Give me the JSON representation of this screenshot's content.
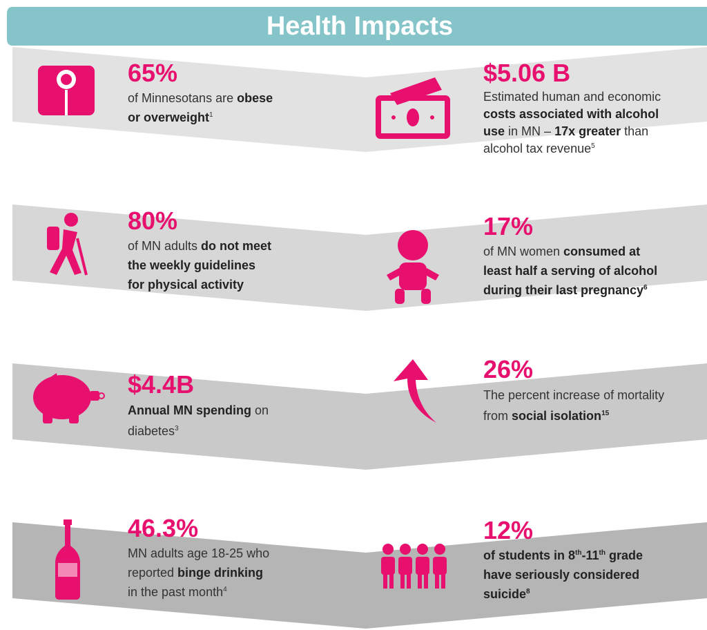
{
  "title": "Health Impacts",
  "items": [
    {
      "stat": "65%",
      "lines": [
        [
          "of Minnesotans are ",
          "obese"
        ],
        [
          "or overweight",
          "1"
        ]
      ]
    },
    {
      "stat": "$5.06 B",
      "lines": [
        [
          "Estimated human and economic"
        ],
        [
          "costs associated with alcohol"
        ],
        [
          "use",
          " in MN – ",
          "17x greater",
          " than"
        ],
        [
          "alcohol tax revenue",
          "5"
        ]
      ]
    },
    {
      "stat": "80%",
      "lines": [
        [
          "of MN adults ",
          "do not meet"
        ],
        [
          "the weekly guidelines"
        ],
        [
          "for physical activity"
        ]
      ]
    },
    {
      "stat": "17%",
      "lines": [
        [
          "of MN women ",
          "consumed at"
        ],
        [
          "least half a serving of alcohol"
        ],
        [
          "during their last pregnancy",
          "6"
        ]
      ]
    },
    {
      "stat": "$4.4B",
      "lines": [
        [
          "Annual MN spending",
          " on"
        ],
        [
          "diabetes",
          "3"
        ]
      ]
    },
    {
      "stat": "26%",
      "lines": [
        [
          "The percent increase of mortality"
        ],
        [
          "from ",
          "social isolation",
          "15"
        ]
      ]
    },
    {
      "stat": "46.3%",
      "lines": [
        [
          "MN adults age 18-25 who"
        ],
        [
          "reported ",
          "binge drinking"
        ],
        [
          "in the past month",
          "4"
        ]
      ]
    },
    {
      "stat": "12%",
      "lines": [
        [
          "of ",
          "students in 8",
          "th",
          "-11",
          "th",
          " grade"
        ],
        [
          "have seriously considered"
        ],
        [
          "suicide",
          "8"
        ]
      ]
    }
  ]
}
